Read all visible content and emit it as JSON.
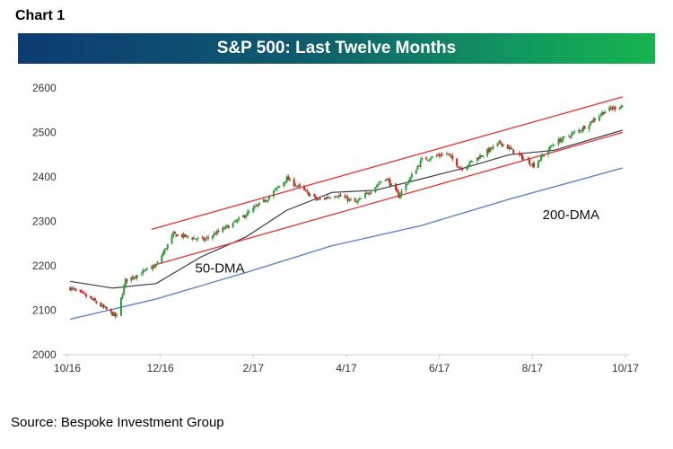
{
  "header": {
    "chart_label": "Chart 1",
    "title": "S&P 500: Last Twelve Months"
  },
  "footer": {
    "source": "Source: Bespoke Investment Group"
  },
  "colors": {
    "title_gradient_start": "#0d3b73",
    "title_gradient_end": "#17b44e",
    "up_candle": "#2e9a3a",
    "down_candle": "#d41f1f",
    "channel": "#e8322f",
    "ma50": "#3a3a44",
    "ma200": "#5d86c6"
  },
  "chart_data": {
    "type": "line",
    "subtype": "candlestick",
    "title": "S&P 500: Last Twelve Months",
    "xlabel": "",
    "ylabel": "",
    "ylim": [
      2000,
      2600
    ],
    "yticks": [
      2000,
      2100,
      2200,
      2300,
      2400,
      2500,
      2600
    ],
    "x_tick_labels": [
      "10/16",
      "12/16",
      "2/17",
      "4/17",
      "6/17",
      "8/17",
      "10/17"
    ],
    "grid": false,
    "legend": "none",
    "series": [
      {
        "name": "S&P 500",
        "style": "candlestick",
        "points": [
          {
            "x": "2016-10-03",
            "y": 2150
          },
          {
            "x": "2016-10-17",
            "y": 2126
          },
          {
            "x": "2016-11-04",
            "y": 2085
          },
          {
            "x": "2016-11-10",
            "y": 2167
          },
          {
            "x": "2016-12-01",
            "y": 2200
          },
          {
            "x": "2016-12-13",
            "y": 2271
          },
          {
            "x": "2017-01-03",
            "y": 2258
          },
          {
            "x": "2017-01-25",
            "y": 2299
          },
          {
            "x": "2017-02-15",
            "y": 2350
          },
          {
            "x": "2017-03-01",
            "y": 2396
          },
          {
            "x": "2017-03-22",
            "y": 2348
          },
          {
            "x": "2017-04-04",
            "y": 2360
          },
          {
            "x": "2017-04-18",
            "y": 2342
          },
          {
            "x": "2017-05-08",
            "y": 2399
          },
          {
            "x": "2017-05-17",
            "y": 2357
          },
          {
            "x": "2017-06-02",
            "y": 2439
          },
          {
            "x": "2017-06-19",
            "y": 2453
          },
          {
            "x": "2017-06-29",
            "y": 2419
          },
          {
            "x": "2017-07-26",
            "y": 2477
          },
          {
            "x": "2017-08-18",
            "y": 2426
          },
          {
            "x": "2017-09-01",
            "y": 2476
          },
          {
            "x": "2017-09-20",
            "y": 2508
          },
          {
            "x": "2017-10-06",
            "y": 2549
          },
          {
            "x": "2017-10-18",
            "y": 2561
          }
        ]
      },
      {
        "name": "50-DMA",
        "points": [
          {
            "x": "2016-10-03",
            "y": 2165
          },
          {
            "x": "2016-11-01",
            "y": 2150
          },
          {
            "x": "2016-12-01",
            "y": 2160
          },
          {
            "x": "2017-01-01",
            "y": 2220
          },
          {
            "x": "2017-02-01",
            "y": 2265
          },
          {
            "x": "2017-03-01",
            "y": 2325
          },
          {
            "x": "2017-04-01",
            "y": 2365
          },
          {
            "x": "2017-05-01",
            "y": 2370
          },
          {
            "x": "2017-06-01",
            "y": 2395
          },
          {
            "x": "2017-07-01",
            "y": 2420
          },
          {
            "x": "2017-08-01",
            "y": 2450
          },
          {
            "x": "2017-09-01",
            "y": 2460
          },
          {
            "x": "2017-10-18",
            "y": 2505
          }
        ]
      },
      {
        "name": "200-DMA",
        "points": [
          {
            "x": "2016-10-03",
            "y": 2080
          },
          {
            "x": "2016-12-01",
            "y": 2125
          },
          {
            "x": "2017-02-01",
            "y": 2185
          },
          {
            "x": "2017-04-01",
            "y": 2245
          },
          {
            "x": "2017-06-01",
            "y": 2290
          },
          {
            "x": "2017-08-01",
            "y": 2350
          },
          {
            "x": "2017-10-18",
            "y": 2420
          }
        ]
      },
      {
        "name": "Upper channel",
        "points": [
          {
            "x": "2016-11-28",
            "y": 2282
          },
          {
            "x": "2017-10-18",
            "y": 2580
          }
        ]
      },
      {
        "name": "Lower channel",
        "points": [
          {
            "x": "2016-11-28",
            "y": 2200
          },
          {
            "x": "2017-10-18",
            "y": 2500
          }
        ]
      }
    ],
    "annotations": [
      {
        "text": "50-DMA",
        "x": "2016-12-28",
        "y": 2185
      },
      {
        "text": "200-DMA",
        "x": "2017-08-24",
        "y": 2305
      }
    ]
  }
}
